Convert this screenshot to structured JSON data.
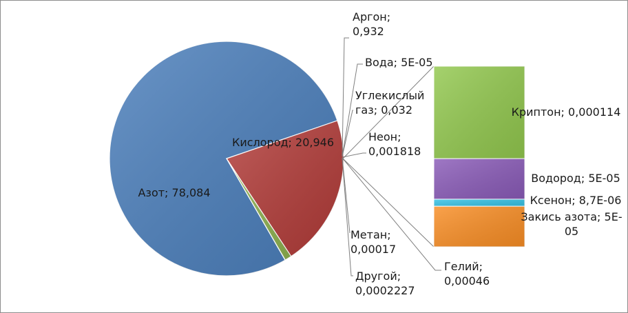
{
  "chart_data": {
    "type": "pie",
    "subtype": "bar-of-pie",
    "grid": false,
    "legend": "none",
    "slices": [
      {
        "name": "Азот",
        "value": 78.084,
        "color": "#4a7ebb",
        "label": "Азот; 78,084"
      },
      {
        "name": "Кислород",
        "value": 20.946,
        "color": "#b23b38",
        "label": "Кислород; 20,946"
      },
      {
        "name": "Аргон",
        "value": 0.932,
        "color": "#8fb350",
        "label": "Аргон; 0,932"
      },
      {
        "name": "Вода",
        "value": 5e-05,
        "color": "#7a5da4",
        "label": "Вода; 5E-05"
      },
      {
        "name": "Углекислый газ",
        "value": 0.032,
        "color": "#3aa8c6",
        "label": "Углекислый газ; 0,032"
      },
      {
        "name": "Неон",
        "value": 0.001818,
        "color": "#f39a3e",
        "label": "Неон; 0,001818"
      },
      {
        "name": "Метан",
        "value": 0.00017,
        "color": "#4a7ebb",
        "label": "Метан; 0,00017"
      },
      {
        "name": "Другой",
        "value": 0.0002227,
        "color": "#b23b38",
        "label": "Другой; 0,0002227"
      },
      {
        "name": "Гелий",
        "value": 0.00046,
        "color": "#8fb350",
        "label": "Гелий; 0,00046"
      }
    ],
    "bar": [
      {
        "name": "Криптон",
        "value": 0.000114,
        "color": "#92c84e",
        "label": "Криптон; 0,000114"
      },
      {
        "name": "Водород",
        "value": 5e-05,
        "color": "#8a5bb8",
        "label": "Водород; 5E-05"
      },
      {
        "name": "Ксенон",
        "value": 8.7e-06,
        "color": "#37c3e6",
        "label": "Ксенон; 8,7E-06"
      },
      {
        "name": "Закись азота",
        "value": 5e-05,
        "color": "#f98e25",
        "label": "Закись азота; 5E-05"
      }
    ]
  }
}
